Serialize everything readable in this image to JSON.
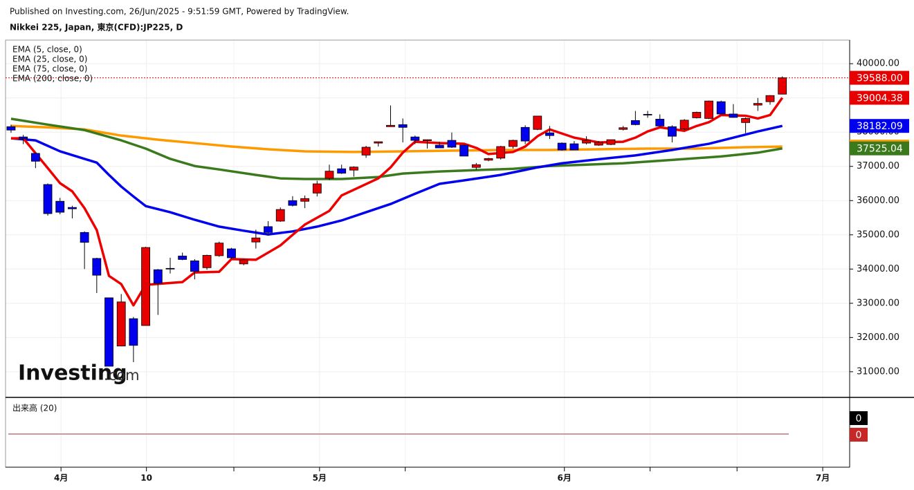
{
  "header": {
    "published": "Published on Investing.com, 26/Jun/2025 - 9:51:59 GMT, Powered by TradingView.",
    "symbol": "Nikkei 225, Japan, 東京(CFD):JP225, D"
  },
  "chart_data": {
    "type": "candlestick",
    "watermark": {
      "brand": "Investing",
      "suffix": ".com"
    },
    "x": [
      0,
      1,
      2,
      3,
      4,
      5,
      6,
      7,
      8,
      9,
      10,
      11,
      12,
      13,
      14,
      15,
      16,
      17,
      18,
      19,
      20,
      21,
      22,
      23,
      24,
      25,
      26,
      27,
      28,
      29,
      30,
      31,
      32,
      33,
      34,
      35,
      36,
      37,
      38,
      39,
      40,
      41,
      42,
      43,
      44,
      45,
      46,
      47,
      48,
      49,
      50,
      51,
      52,
      53,
      54,
      55,
      56,
      57,
      58,
      59,
      60,
      61,
      62,
      63
    ],
    "open": [
      38160,
      37860,
      37380,
      36470,
      35980,
      35800,
      35070,
      34310,
      33160,
      31750,
      32550,
      32350,
      33980,
      34020,
      34380,
      34240,
      34040,
      34390,
      34590,
      34150,
      34790,
      35240,
      35400,
      36000,
      35980,
      36220,
      36650,
      36930,
      36890,
      37330,
      37680,
      38160,
      38220,
      37860,
      37750,
      37620,
      37760,
      37620,
      36970,
      37180,
      37240,
      37580,
      38140,
      38080,
      37980,
      37680,
      37660,
      37680,
      37620,
      37640,
      38080,
      38340,
      38520,
      38380,
      38160,
      38090,
      38420,
      38400,
      38890,
      38530,
      38280,
      38790,
      38890,
      39110
    ],
    "high": [
      38220,
      37920,
      37400,
      36500,
      36080,
      35850,
      35100,
      34330,
      33160,
      33270,
      32600,
      34650,
      34000,
      34330,
      34480,
      34290,
      34420,
      34800,
      34620,
      34300,
      35150,
      35400,
      35800,
      36130,
      36150,
      36580,
      37050,
      37050,
      37000,
      37600,
      37720,
      38780,
      38400,
      37900,
      37780,
      37720,
      37990,
      37630,
      37100,
      37250,
      37600,
      37780,
      38200,
      38470,
      38180,
      37700,
      37740,
      37880,
      37740,
      37780,
      38180,
      38620,
      38620,
      38520,
      38200,
      38380,
      38600,
      38920,
      38920,
      38820,
      38430,
      39000,
      39080,
      39630
    ],
    "low": [
      37980,
      37650,
      36950,
      35560,
      35600,
      35480,
      34000,
      33300,
      31160,
      31750,
      31280,
      32350,
      32660,
      33870,
      34260,
      33700,
      33980,
      34360,
      34300,
      34110,
      34600,
      34980,
      35380,
      35830,
      35780,
      36120,
      36600,
      36780,
      36700,
      37250,
      37580,
      38160,
      37700,
      37650,
      37520,
      37540,
      37540,
      37300,
      36900,
      37150,
      37200,
      37520,
      37650,
      38060,
      37800,
      37460,
      37480,
      37640,
      37600,
      37620,
      38050,
      38200,
      38420,
      38160,
      37700,
      38060,
      38400,
      38380,
      38530,
      38420,
      37970,
      38620,
      38800,
      39110
    ],
    "close": [
      38060,
      37800,
      37150,
      35620,
      35660,
      35760,
      34780,
      33820,
      31160,
      33040,
      31770,
      34630,
      33580,
      34000,
      34280,
      33930,
      34400,
      34760,
      34330,
      34270,
      34910,
      35070,
      35740,
      35860,
      36060,
      36490,
      36860,
      36800,
      36980,
      37560,
      37720,
      38200,
      38140,
      37760,
      37780,
      37540,
      37560,
      37300,
      37050,
      37230,
      37580,
      37760,
      37740,
      38470,
      37900,
      37480,
      37480,
      37760,
      37700,
      37780,
      38130,
      38220,
      38500,
      38180,
      37880,
      38350,
      38580,
      38910,
      38530,
      38430,
      38400,
      38840,
      39070,
      39588
    ],
    "up_color": "#e60000",
    "down_color": "#0000ee",
    "series": [
      {
        "name": "EMA (5, close, 0)",
        "color": "#ee0000",
        "x": [
          0,
          1,
          3,
          4,
          5,
          6,
          7,
          8,
          9,
          10,
          11,
          14,
          15,
          17,
          18,
          20,
          22,
          23,
          24,
          26,
          27,
          30,
          31,
          32,
          33,
          35,
          37,
          38,
          39,
          41,
          42,
          43,
          44,
          46,
          48,
          50,
          51,
          52,
          53,
          55,
          56,
          57,
          58,
          60,
          61,
          62,
          63
        ],
        "values": [
          37820,
          37820,
          36950,
          36510,
          36270,
          35780,
          35140,
          33800,
          33560,
          32940,
          33540,
          33620,
          33900,
          33920,
          34290,
          34270,
          34690,
          35000,
          35300,
          35700,
          36150,
          36650,
          36970,
          37400,
          37720,
          37680,
          37660,
          37540,
          37360,
          37420,
          37580,
          37880,
          38080,
          37840,
          37700,
          37720,
          37840,
          38020,
          38140,
          38040,
          38180,
          38290,
          38500,
          38480,
          38400,
          38500,
          39004.38
        ]
      },
      {
        "name": "EMA (25, close, 0)",
        "color": "#0000ee",
        "x": [
          0,
          2,
          4,
          7,
          8,
          9,
          10,
          11,
          13,
          15,
          17,
          19,
          21,
          23,
          25,
          27,
          29,
          31,
          33,
          35,
          37,
          40,
          43,
          45,
          48,
          51,
          54,
          57,
          59,
          61,
          63
        ],
        "values": [
          37820,
          37760,
          37440,
          37110,
          36750,
          36410,
          36120,
          35840,
          35660,
          35440,
          35240,
          35120,
          35010,
          35100,
          35240,
          35420,
          35660,
          35900,
          36200,
          36490,
          36590,
          36750,
          36970,
          37090,
          37210,
          37320,
          37480,
          37660,
          37840,
          38020,
          38182.09
        ]
      },
      {
        "name": "EMA (75, close, 0)",
        "color": "#3a7a1d",
        "x": [
          0,
          3,
          6,
          9,
          11,
          13,
          15,
          17,
          20,
          22,
          24,
          27,
          30,
          32,
          35,
          38,
          41,
          44,
          47,
          50,
          54,
          58,
          61,
          63
        ],
        "values": [
          38390,
          38220,
          38060,
          37760,
          37520,
          37220,
          37010,
          36910,
          36750,
          36650,
          36630,
          36630,
          36690,
          36790,
          36850,
          36890,
          36930,
          37010,
          37050,
          37090,
          37190,
          37290,
          37400,
          37525.04
        ]
      },
      {
        "name": "EMA (200, close, 0)",
        "color": "#ff9900",
        "x": [
          0,
          3,
          6,
          9,
          12,
          15,
          18,
          21,
          24,
          28,
          32,
          36,
          40,
          44,
          48,
          52,
          56,
          60,
          63
        ],
        "values": [
          38180,
          38140,
          38080,
          37900,
          37780,
          37680,
          37580,
          37500,
          37440,
          37420,
          37440,
          37460,
          37480,
          37480,
          37500,
          37520,
          37520,
          37560,
          37577.04
        ]
      }
    ],
    "price_labels": [
      {
        "value": 39588,
        "label": "39588.00",
        "color": "#e60000"
      },
      {
        "value": 39004.38,
        "label": "39004.38",
        "color": "#e60000"
      },
      {
        "value": 38182.09,
        "label": "38182.09",
        "color": "#0000ee"
      },
      {
        "value": 37577.04,
        "label": "37577.04",
        "color": "#ff9900"
      },
      {
        "value": 37525.04,
        "label": "37525.04",
        "color": "#3a7a1d"
      }
    ],
    "xlim": [
      -0.45,
      68.5
    ],
    "ylim": [
      30250,
      40690
    ],
    "yticks": [
      {
        "value": 31000,
        "label": "31000.00"
      },
      {
        "value": 32000,
        "label": "32000.00"
      },
      {
        "value": 33000,
        "label": "33000.00"
      },
      {
        "value": 34000,
        "label": "34000.00"
      },
      {
        "value": 35000,
        "label": "35000.00"
      },
      {
        "value": 36000,
        "label": "36000.00"
      },
      {
        "value": 37000,
        "label": "37000.00"
      },
      {
        "value": 38000,
        "label": "38000.00"
      },
      {
        "value": 39000,
        "label": "39000.00"
      },
      {
        "value": 40000,
        "label": "40000.00"
      }
    ],
    "xticks": [
      {
        "value": 4.08,
        "label": "4月"
      },
      {
        "value": 11.06,
        "label": "10"
      },
      {
        "value": 25.2,
        "label": "5月"
      },
      {
        "value": 45.2,
        "label": "6月"
      },
      {
        "value": 66.3,
        "label": "7月"
      }
    ],
    "xminor": [
      18.2,
      32.2,
      52.2,
      59.3
    ],
    "grid": true,
    "volume": {
      "title": "出来高 (20)",
      "labels": [
        {
          "label": "0",
          "color": "#000000"
        },
        {
          "label": "0",
          "color": "#c62828"
        }
      ]
    }
  }
}
